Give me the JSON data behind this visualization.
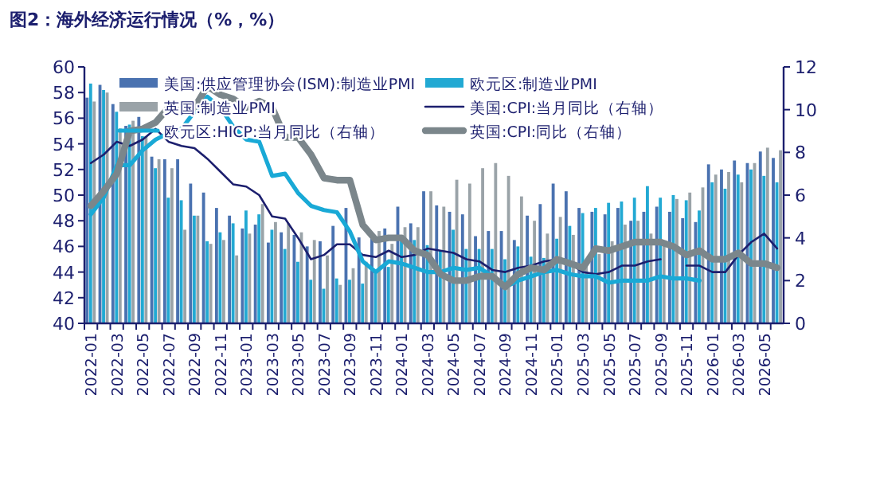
{
  "chart_data": {
    "type": "bar",
    "title": "图2：海外经济运行情况（%，%）",
    "categories": [
      "2022-01",
      null,
      "2022-03",
      null,
      "2022-05",
      null,
      "2022-07",
      null,
      "2022-09",
      null,
      "2022-11",
      null,
      "2023-01",
      null,
      "2023-03",
      null,
      "2023-05",
      null,
      "2023-07",
      null,
      "2023-09",
      null,
      "2023-11",
      null,
      "2024-01",
      null,
      "2024-03",
      null,
      "2024-05",
      null,
      "2024-07",
      null,
      "2024-09",
      null,
      "2024-11",
      null,
      "2025-01",
      null,
      "2025-03",
      null,
      "2025-05",
      null,
      "2025-07",
      null,
      "2025-09",
      null,
      "2025-11",
      null,
      "2026-01",
      null,
      "2026-03",
      null,
      "2026-05",
      null
    ],
    "series": [
      {
        "name": "美国:供应管理协会(ISM):制造业PMI",
        "color": "#4a72b0",
        "values": [
          57.6,
          58.6,
          57.1,
          55.4,
          56.1,
          53.0,
          52.8,
          52.8,
          50.9,
          50.2,
          49.0,
          48.4,
          47.4,
          47.7,
          46.3,
          47.1,
          46.9,
          46.0,
          46.4,
          47.6,
          49.0,
          46.7,
          46.7,
          47.4,
          49.1,
          47.8,
          50.3,
          49.2,
          48.7,
          48.5,
          46.8,
          47.2,
          47.2,
          46.5,
          48.4,
          49.3,
          50.9,
          50.3,
          49.0,
          48.7,
          48.5,
          49.0,
          48.0,
          48.7,
          49.1,
          48.7,
          48.2,
          47.9,
          52.4,
          52.0,
          52.7,
          52.5,
          53.4,
          52.9
        ]
      },
      {
        "name": "欧元区:制造业PMI",
        "color": "#22a9d3",
        "values": [
          58.7,
          58.2,
          56.5,
          55.5,
          54.6,
          52.1,
          49.8,
          49.6,
          48.4,
          46.4,
          47.1,
          47.8,
          48.8,
          48.5,
          47.3,
          45.8,
          44.8,
          43.4,
          42.7,
          43.5,
          43.4,
          43.1,
          44.2,
          44.4,
          46.6,
          46.5,
          46.1,
          45.7,
          47.3,
          45.8,
          45.8,
          45.8,
          45.0,
          46.0,
          45.2,
          45.1,
          46.6,
          47.6,
          48.6,
          49.0,
          49.4,
          49.5,
          49.8,
          50.7,
          49.8,
          50.0,
          49.6,
          48.8,
          51.0,
          50.5,
          51.6,
          52.0,
          51.5,
          51.0
        ]
      },
      {
        "name": "英国:制造业PMI",
        "color": "#9aa3a8",
        "values": [
          57.3,
          58.0,
          55.2,
          55.8,
          54.6,
          52.8,
          52.1,
          47.3,
          48.4,
          46.2,
          46.5,
          45.3,
          47.0,
          49.3,
          47.9,
          47.8,
          47.1,
          46.5,
          45.3,
          43.0,
          44.3,
          44.8,
          47.2,
          46.2,
          47.5,
          47.5,
          50.3,
          49.1,
          51.2,
          50.9,
          52.1,
          52.5,
          51.5,
          49.9,
          48.0,
          47.0,
          48.3,
          46.9,
          44.9,
          45.4,
          46.4,
          47.7,
          48.0,
          47.0,
          46.2,
          49.7,
          50.2,
          50.6,
          51.6,
          51.8,
          51.0,
          52.5,
          53.7,
          53.5
        ]
      },
      {
        "name": "美国:CPI:当月同比（右轴）",
        "type": "line",
        "axis": "y2",
        "color": "#1c1f6e",
        "values": [
          7.5,
          7.9,
          8.5,
          8.3,
          8.6,
          9.1,
          8.5,
          8.3,
          8.2,
          7.7,
          7.1,
          6.5,
          6.4,
          6.0,
          5.0,
          4.9,
          4.0,
          3.0,
          3.2,
          3.7,
          3.7,
          3.2,
          3.1,
          3.4,
          3.1,
          3.2,
          3.5,
          3.4,
          3.3,
          3.0,
          2.9,
          2.5,
          2.4,
          2.6,
          2.7,
          2.9,
          3.0,
          2.8,
          2.4,
          2.3,
          2.4,
          2.7,
          2.7,
          2.9,
          3.0,
          null,
          2.7,
          2.7,
          2.4,
          2.4,
          3.2,
          3.8,
          4.2,
          3.5
        ]
      },
      {
        "name": "欧元区:HICP:当月同比（右轴）",
        "type": "line",
        "axis": "y2",
        "color": "#19a9d6",
        "values": [
          5.1,
          5.9,
          7.4,
          7.4,
          8.1,
          8.6,
          8.9,
          9.1,
          9.9,
          10.6,
          10.1,
          9.2,
          8.6,
          8.5,
          6.9,
          7.0,
          6.1,
          5.5,
          5.3,
          5.2,
          4.3,
          2.9,
          2.4,
          2.9,
          2.8,
          2.6,
          2.4,
          2.4,
          2.6,
          2.5,
          2.6,
          2.2,
          1.7,
          2.0,
          2.2,
          2.4,
          2.5,
          2.3,
          2.2,
          2.2,
          1.9,
          2.0,
          2.0,
          2.0,
          2.2,
          2.1,
          2.1,
          2.0,
          null,
          null,
          null,
          null,
          null,
          null
        ]
      },
      {
        "name": "英国:CPI:同比（右轴）",
        "type": "line",
        "axis": "y2",
        "color": "#7b868b",
        "values": [
          5.5,
          6.2,
          7.0,
          9.0,
          9.1,
          9.4,
          10.1,
          9.9,
          10.1,
          11.1,
          10.7,
          10.5,
          10.1,
          10.4,
          10.1,
          8.7,
          8.7,
          7.9,
          6.8,
          6.7,
          6.7,
          4.6,
          3.9,
          4.0,
          4.0,
          3.4,
          3.2,
          2.3,
          2.0,
          2.0,
          2.2,
          2.2,
          1.7,
          2.3,
          2.6,
          2.5,
          3.0,
          2.8,
          2.6,
          3.5,
          3.4,
          3.6,
          3.8,
          3.8,
          3.8,
          3.6,
          3.2,
          3.4,
          3.0,
          3.0,
          3.3,
          2.8,
          2.8,
          2.6
        ]
      }
    ],
    "ylim": [
      40,
      60
    ],
    "yticks": [
      40,
      42,
      44,
      46,
      48,
      50,
      52,
      54,
      56,
      58,
      60
    ],
    "y2lim": [
      0,
      12
    ],
    "y2ticks": [
      0,
      2,
      4,
      6,
      8,
      10,
      12
    ],
    "legend": "top left",
    "grid": false
  }
}
